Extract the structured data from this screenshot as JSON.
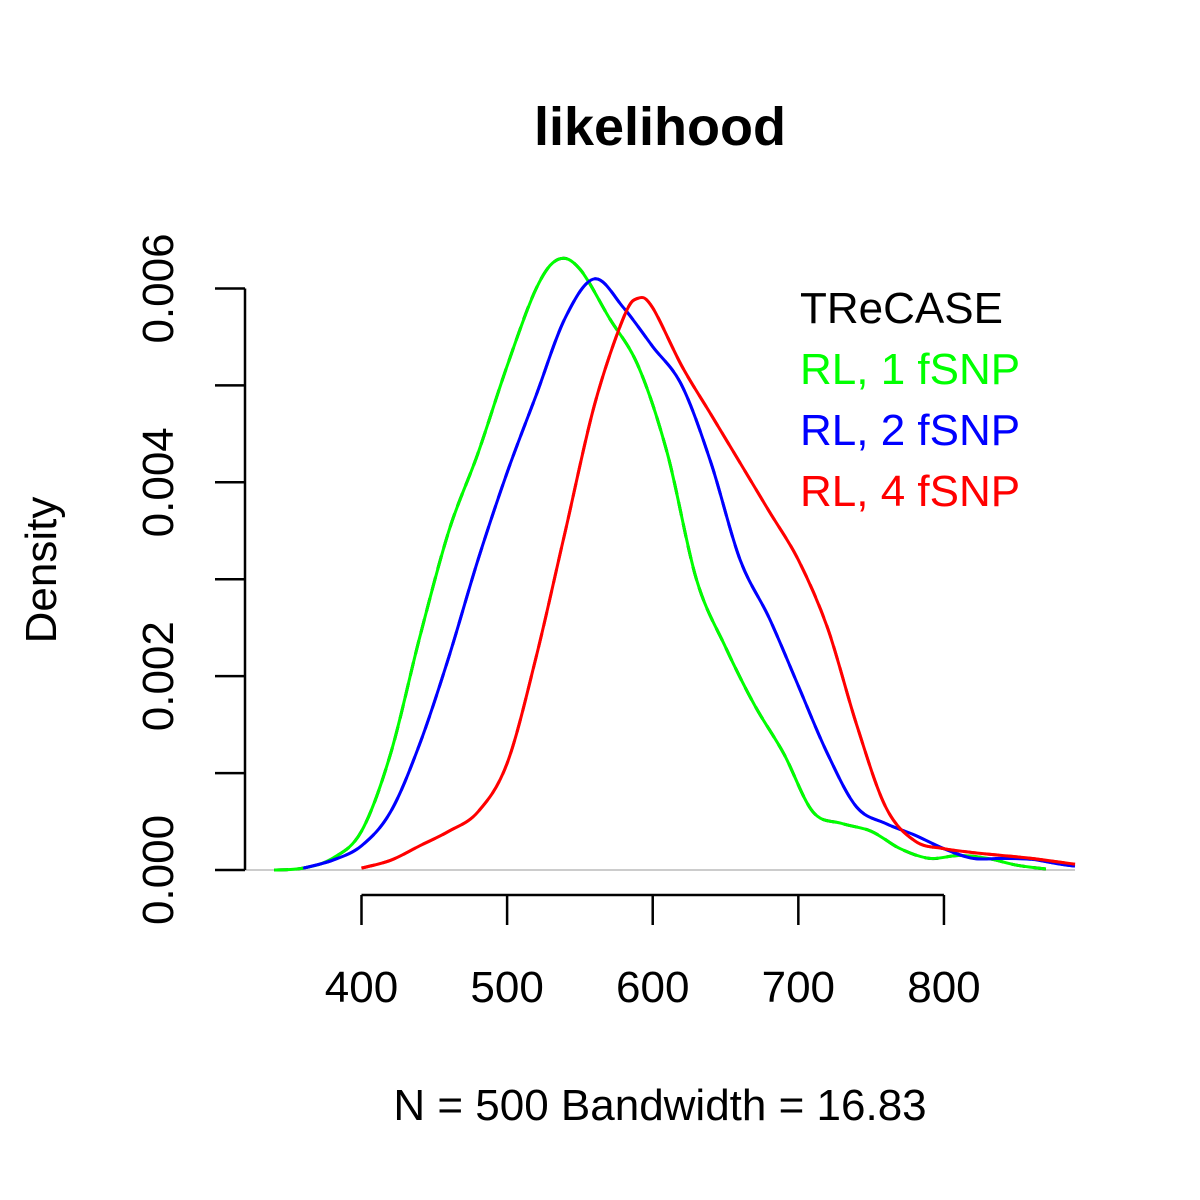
{
  "chart_data": {
    "type": "line",
    "title": "likelihood",
    "xlabel": "N = 500   Bandwidth = 16.83",
    "ylabel": "Density",
    "xlim": [
      320,
      890
    ],
    "ylim": [
      0,
      0.0065
    ],
    "x_ticks": [
      {
        "value": 400,
        "label": "400"
      },
      {
        "value": 500,
        "label": "500"
      },
      {
        "value": 600,
        "label": "600"
      },
      {
        "value": 700,
        "label": "700"
      },
      {
        "value": 800,
        "label": "800"
      }
    ],
    "y_ticks": [
      {
        "value": 0,
        "label": "0.000"
      },
      {
        "value": 0.001,
        "label": ""
      },
      {
        "value": 0.002,
        "label": "0.002"
      },
      {
        "value": 0.003,
        "label": ""
      },
      {
        "value": 0.004,
        "label": "0.004"
      },
      {
        "value": 0.005,
        "label": ""
      },
      {
        "value": 0.006,
        "label": "0.006"
      }
    ],
    "legend": {
      "position": "top-right",
      "entries": [
        {
          "label": "TReCASE",
          "color": "#000000"
        },
        {
          "label": "RL, 1 fSNP",
          "color": "#00ff00"
        },
        {
          "label": "RL, 2 fSNP",
          "color": "#0000ff"
        },
        {
          "label": "RL, 4 fSNP",
          "color": "#ff0000"
        }
      ]
    },
    "series": [
      {
        "color": "#000000",
        "dash": true,
        "x": [
          340,
          360,
          380,
          400,
          420,
          440,
          460,
          480,
          500,
          520,
          535,
          550,
          570,
          590,
          610,
          630,
          650,
          670,
          690,
          710,
          730,
          750,
          770,
          790,
          810,
          830,
          850,
          870
        ],
        "y": [
          0,
          2e-05,
          0.00012,
          0.0004,
          0.0012,
          0.0024,
          0.0035,
          0.0043,
          0.0052,
          0.006,
          0.0063,
          0.0062,
          0.0057,
          0.0052,
          0.0043,
          0.003,
          0.0023,
          0.0017,
          0.0012,
          0.0006,
          0.00048,
          0.0004,
          0.00022,
          0.00012,
          0.00015,
          0.00012,
          5e-05,
          1e-05
        ]
      },
      {
        "color": "#00ff00",
        "dash": false,
        "x": [
          340,
          360,
          380,
          400,
          420,
          440,
          460,
          480,
          500,
          520,
          535,
          550,
          570,
          590,
          610,
          630,
          650,
          670,
          690,
          710,
          730,
          750,
          770,
          790,
          810,
          830,
          850,
          870
        ],
        "y": [
          0,
          2e-05,
          0.00012,
          0.0004,
          0.0012,
          0.0024,
          0.0035,
          0.0043,
          0.0052,
          0.006,
          0.0063,
          0.0062,
          0.0057,
          0.0052,
          0.0043,
          0.003,
          0.0023,
          0.0017,
          0.0012,
          0.0006,
          0.00048,
          0.0004,
          0.00022,
          0.00012,
          0.00015,
          0.00012,
          5e-05,
          1e-05
        ]
      },
      {
        "color": "#0000ff",
        "dash": true,
        "x": [
          360,
          380,
          400,
          420,
          440,
          460,
          480,
          500,
          520,
          540,
          560,
          580,
          600,
          620,
          640,
          660,
          680,
          700,
          720,
          740,
          760,
          780,
          800,
          820,
          840,
          860,
          880,
          890
        ],
        "y": [
          2e-05,
          0.0001,
          0.00025,
          0.0006,
          0.0013,
          0.0022,
          0.0032,
          0.0041,
          0.0049,
          0.0057,
          0.0061,
          0.0058,
          0.0054,
          0.005,
          0.0042,
          0.0032,
          0.0026,
          0.0019,
          0.0012,
          0.00065,
          0.00048,
          0.00036,
          0.00022,
          0.00012,
          0.00012,
          0.00011,
          6e-05,
          4e-05
        ]
      },
      {
        "color": "#0000ff",
        "dash": false,
        "x": [
          360,
          380,
          400,
          420,
          440,
          460,
          480,
          500,
          520,
          540,
          560,
          580,
          600,
          620,
          640,
          660,
          680,
          700,
          720,
          740,
          760,
          780,
          800,
          820,
          840,
          860,
          880,
          890
        ],
        "y": [
          2e-05,
          0.0001,
          0.00025,
          0.0006,
          0.0013,
          0.0022,
          0.0032,
          0.0041,
          0.0049,
          0.0057,
          0.0061,
          0.0058,
          0.0054,
          0.005,
          0.0042,
          0.0032,
          0.0026,
          0.0019,
          0.0012,
          0.00065,
          0.00048,
          0.00036,
          0.00022,
          0.00012,
          0.00012,
          0.00011,
          6e-05,
          4e-05
        ]
      },
      {
        "color": "#ff0000",
        "dash": true,
        "x": [
          400,
          420,
          440,
          460,
          480,
          500,
          520,
          540,
          560,
          580,
          590,
          600,
          620,
          640,
          660,
          680,
          700,
          720,
          740,
          760,
          780,
          800,
          820,
          840,
          860,
          880,
          890
        ],
        "y": [
          2e-05,
          0.0001,
          0.00025,
          0.0004,
          0.0006,
          0.0011,
          0.0022,
          0.0035,
          0.0048,
          0.0057,
          0.0059,
          0.0058,
          0.0052,
          0.0047,
          0.0042,
          0.0037,
          0.0032,
          0.0025,
          0.0015,
          0.00065,
          0.0003,
          0.00022,
          0.00018,
          0.00015,
          0.00012,
          8e-05,
          6e-05
        ]
      },
      {
        "color": "#ff0000",
        "dash": false,
        "x": [
          400,
          420,
          440,
          460,
          480,
          500,
          520,
          540,
          560,
          580,
          590,
          600,
          620,
          640,
          660,
          680,
          700,
          720,
          740,
          760,
          780,
          800,
          820,
          840,
          860,
          880,
          890
        ],
        "y": [
          2e-05,
          0.0001,
          0.00025,
          0.0004,
          0.0006,
          0.0011,
          0.0022,
          0.0035,
          0.0048,
          0.0057,
          0.0059,
          0.0058,
          0.0052,
          0.0047,
          0.0042,
          0.0037,
          0.0032,
          0.0025,
          0.0015,
          0.00065,
          0.0003,
          0.00022,
          0.00018,
          0.00015,
          0.00012,
          8e-05,
          6e-05
        ]
      }
    ]
  }
}
